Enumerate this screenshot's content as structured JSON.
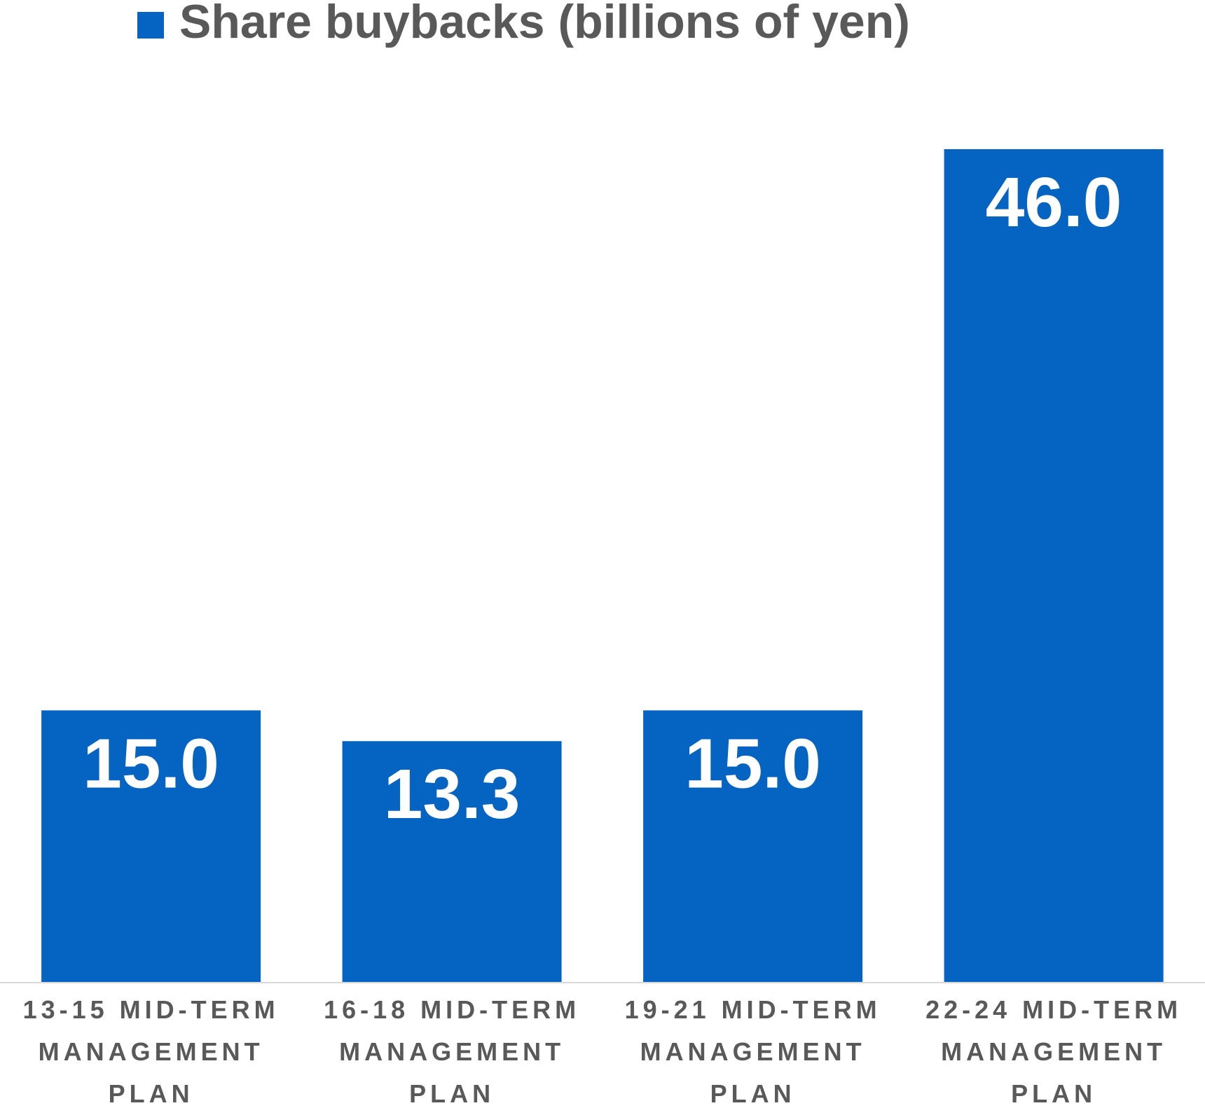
{
  "chart_data": {
    "type": "bar",
    "series": [
      {
        "name": "Share buybacks (billions of yen)",
        "color": "#0563c1",
        "values": [
          15.0,
          13.3,
          15.0,
          46.0
        ],
        "value_labels": [
          "15.0",
          "13.3",
          "15.0",
          "46.0"
        ]
      }
    ],
    "categories": [
      "13-15 MID-TERM MANAGEMENT PLAN",
      "16-18 MID-TERM MANAGEMENT PLAN",
      "19-21 MID-TERM MANAGEMENT PLAN",
      "22-24 MID-TERM MANAGEMENT PLAN"
    ],
    "legend": "top"
  }
}
